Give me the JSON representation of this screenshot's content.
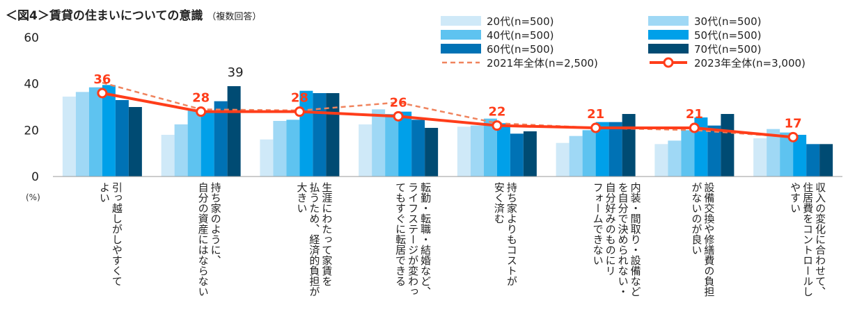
{
  "title": "＜図4＞賃貸の住まいについての意識",
  "title_note": "（複数回答）",
  "unit_label": "(%)",
  "chart_data": {
    "type": "bar",
    "ylim": [
      0,
      60
    ],
    "yticks": [
      0,
      20,
      40,
      60
    ],
    "grid": false,
    "legend_position": "top-right",
    "categories": [
      "引っ越しがしやすくてよい",
      "持ち家のように、自分の資産にはならない",
      "生涯にわたって家賃を払うため、経済的負担が大きい",
      "転勤・転職・結婚など、ライフステージが変わってもすぐに転居できる",
      "持ち家よりもコストが安く済む",
      "内装・間取り・設備などを自分で決められない・自分好みのものにリフォームできない",
      "設備交換や修繕費の負担がないのが良い",
      "収入の変化に合わせて、住居費をコントロールしやすい"
    ],
    "category_lines": [
      [
        "引っ越しがしやすくて",
        "よい"
      ],
      [
        "持ち家のように、",
        "自分の資産にはならない"
      ],
      [
        "生涯にわたって家賃を",
        "払うため、経済的負担が",
        "大きい"
      ],
      [
        "転勤・転職・結婚など、",
        "ライフステージが変わっ",
        "てもすぐに転居できる"
      ],
      [
        "持ち家よりもコストが",
        "安く済む"
      ],
      [
        "内装・間取り・設備など",
        "を自分で決められない・",
        "自分好みのものにリ",
        "フォームできない"
      ],
      [
        "設備交換や修繕費の負担",
        "がないのが良い"
      ],
      [
        "収入の変化に合わせて、",
        "住居費をコントロールし",
        "やすい"
      ]
    ],
    "series": [
      {
        "name": "20代(n=500)",
        "type": "bar",
        "color": "#cfe9f8",
        "values": [
          34.5,
          18,
          16,
          22.5,
          21.5,
          14.5,
          14,
          16.5
        ]
      },
      {
        "name": "30代(n=500)",
        "type": "bar",
        "color": "#9fd8f5",
        "values": [
          36.5,
          22.5,
          24,
          29,
          22,
          17.5,
          15.5,
          20.5
        ]
      },
      {
        "name": "40代(n=500)",
        "type": "bar",
        "color": "#5ec3f0",
        "values": [
          38.5,
          29,
          24.5,
          27,
          25,
          20,
          20,
          19
        ]
      },
      {
        "name": "50代(n=500)",
        "type": "bar",
        "color": "#00a0e9",
        "values": [
          39.5,
          28,
          37,
          28,
          23,
          23.5,
          25.5,
          18
        ]
      },
      {
        "name": "60代(n=500)",
        "type": "bar",
        "color": "#0072b5",
        "values": [
          33,
          32.5,
          36,
          24.5,
          18.5,
          23.5,
          22,
          14
        ]
      },
      {
        "name": "70代(n=500)",
        "type": "bar",
        "color": "#004b73",
        "values": [
          30,
          39,
          36,
          21,
          19.5,
          27,
          27,
          14
        ]
      },
      {
        "name": "2021年全体(n=2,500)",
        "type": "dashed-line",
        "color": "#f0845e",
        "values": [
          40.5,
          29,
          28.5,
          32,
          23,
          21,
          20,
          17
        ]
      },
      {
        "name": "2023年全体(n=3,000)",
        "type": "line-marker",
        "color": "#ff3d1a",
        "values": [
          36,
          28,
          28,
          26,
          22,
          21,
          21,
          17
        ],
        "data_labels": [
          "36",
          "28",
          "28",
          "26",
          "22",
          "21",
          "21",
          "17"
        ]
      }
    ],
    "annotations": [
      {
        "category": "持ち家のように、自分の資産にはならない",
        "series": "70代(n=500)",
        "text": "39",
        "color": "#222222"
      }
    ]
  }
}
